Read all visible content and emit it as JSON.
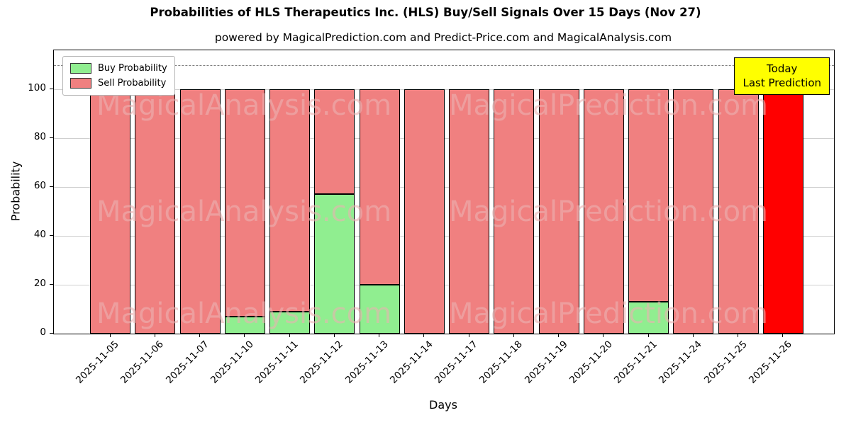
{
  "title": "Probabilities of HLS Therapeutics Inc. (HLS) Buy/Sell Signals Over 15 Days (Nov 27)",
  "subtitle": "powered by MagicalPrediction.com and Predict-Price.com and MagicalAnalysis.com",
  "legend": {
    "items": [
      {
        "label": "Buy Probability",
        "color": "#90ee90"
      },
      {
        "label": "Sell Probability",
        "color": "#f08080"
      }
    ]
  },
  "annotation": {
    "lines": [
      "Today",
      "Last Prediction"
    ],
    "bg_color": "#ffff00"
  },
  "watermarks": {
    "left": "MagicalAnalysis.com",
    "right": "MagicalPrediction.com"
  },
  "chart_data": {
    "type": "bar",
    "stacked": true,
    "title": "Probabilities of HLS Therapeutics Inc. (HLS) Buy/Sell Signals Over 15 Days (Nov 27)",
    "xlabel": "Days",
    "ylabel": "Probability",
    "categories": [
      "2025-11-05",
      "2025-11-06",
      "2025-11-07",
      "2025-11-10",
      "2025-11-11",
      "2025-11-12",
      "2025-11-13",
      "2025-11-14",
      "2025-11-17",
      "2025-11-18",
      "2025-11-19",
      "2025-11-20",
      "2025-11-21",
      "2025-11-24",
      "2025-11-25",
      "2025-11-26"
    ],
    "series": [
      {
        "name": "Buy Probability",
        "color": "#90ee90",
        "values": [
          0,
          0,
          0,
          7,
          9,
          57,
          20,
          0,
          0,
          0,
          0,
          0,
          13,
          0,
          0,
          0
        ]
      },
      {
        "name": "Sell Probability",
        "color": "#f08080",
        "values": [
          100,
          100,
          100,
          93,
          91,
          43,
          80,
          100,
          100,
          100,
          100,
          100,
          87,
          100,
          100,
          100
        ]
      }
    ],
    "last_bar_color": "#ff0000",
    "yticks": [
      0,
      20,
      40,
      60,
      80,
      100
    ],
    "ylim": [
      0,
      116
    ],
    "reference_line": {
      "y": 110,
      "style": "dashed",
      "color": "#808080"
    },
    "grid": true,
    "legend_position": "upper left"
  }
}
